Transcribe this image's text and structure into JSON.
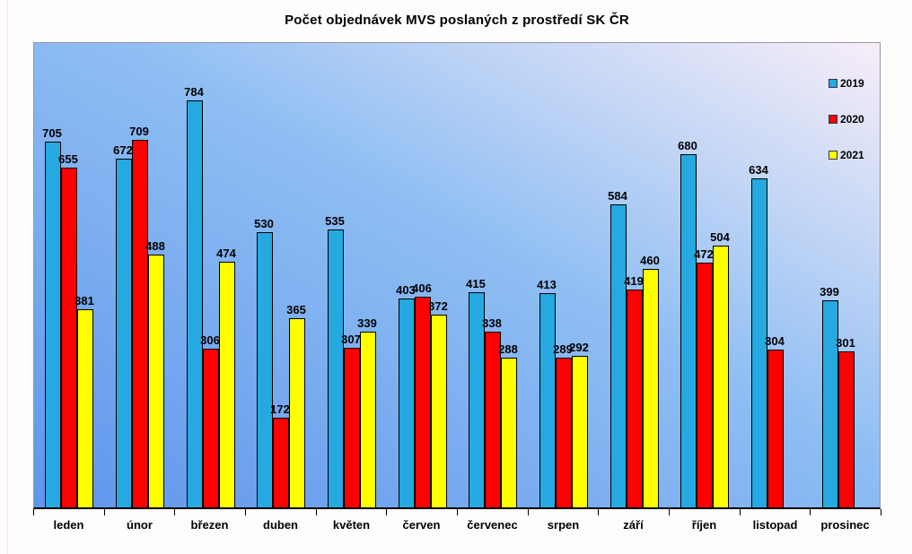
{
  "title": "Počet objednávek MVS poslaných z prostředí SK ČR",
  "legend": [
    {
      "label": "2019",
      "color": "#25A9E0"
    },
    {
      "label": "2020",
      "color": "#FE0000"
    },
    {
      "label": "2021",
      "color": "#FFFF00"
    }
  ],
  "chart_data": {
    "type": "bar",
    "title": "Počet objednávek MVS poslaných z prostředí SK ČR",
    "categories": [
      "leden",
      "únor",
      "březen",
      "duben",
      "květen",
      "červen",
      "červenec",
      "srpen",
      "září",
      "říjen",
      "listopad",
      "prosinec"
    ],
    "series": [
      {
        "name": "2019",
        "color": "#25A9E0",
        "values": [
          705,
          672,
          784,
          530,
          535,
          403,
          415,
          413,
          584,
          680,
          634,
          399
        ]
      },
      {
        "name": "2020",
        "color": "#FE0000",
        "values": [
          655,
          709,
          306,
          172,
          307,
          406,
          338,
          289,
          419,
          472,
          304,
          301
        ]
      },
      {
        "name": "2021",
        "color": "#FFFF00",
        "values": [
          381,
          488,
          474,
          365,
          339,
          372,
          288,
          292,
          460,
          504,
          null,
          null
        ]
      }
    ],
    "xlabel": "",
    "ylabel": "",
    "ylim": [
      0,
      900
    ],
    "grid": false,
    "data_labels": true,
    "legend_position": "right-top",
    "plot_background": {
      "type": "gradient",
      "from": "#6095EC",
      "to": "#F8EEF8",
      "direction": "to top right"
    }
  }
}
